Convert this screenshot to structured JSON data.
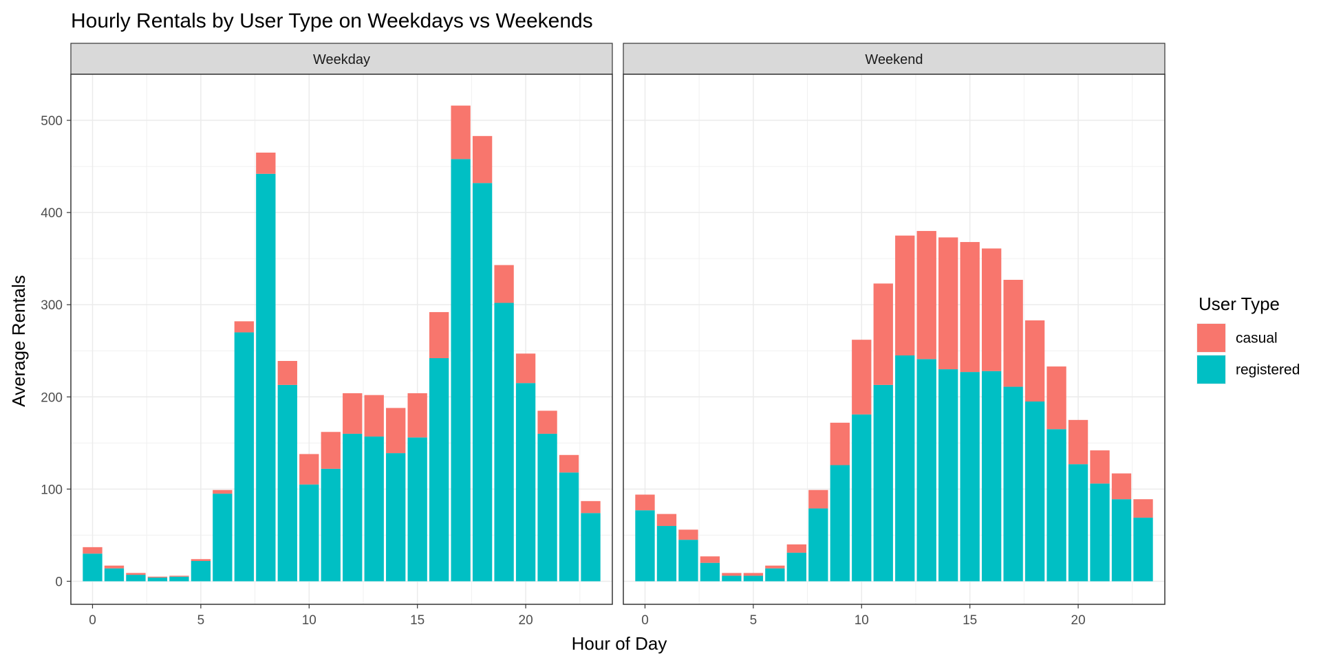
{
  "chart_data": {
    "type": "bar",
    "stacked": true,
    "title": "Hourly Rentals by User Type on Weekdays vs Weekends",
    "xlabel": "Hour of Day",
    "ylabel": "Average Rentals",
    "xlim": [
      -1,
      24
    ],
    "ylim": [
      -25,
      550
    ],
    "x_ticks": [
      0,
      5,
      10,
      15,
      20
    ],
    "y_ticks": [
      0,
      100,
      200,
      300,
      400,
      500
    ],
    "grid": true,
    "legend": {
      "title": "User Type",
      "position": "right"
    },
    "colors": {
      "casual": "#F8766D",
      "registered": "#00BFC4"
    },
    "series_names": [
      "casual",
      "registered"
    ],
    "hours": [
      0,
      1,
      2,
      3,
      4,
      5,
      6,
      7,
      8,
      9,
      10,
      11,
      12,
      13,
      14,
      15,
      16,
      17,
      18,
      19,
      20,
      21,
      22,
      23
    ],
    "panels": [
      {
        "label": "Weekday",
        "registered": [
          30,
          14,
          7,
          4,
          5,
          22,
          95,
          270,
          442,
          213,
          105,
          122,
          160,
          157,
          139,
          156,
          242,
          458,
          432,
          302,
          215,
          160,
          118,
          74
        ],
        "total": [
          37,
          17,
          9,
          5,
          6,
          24,
          99,
          282,
          465,
          239,
          138,
          162,
          204,
          202,
          188,
          204,
          292,
          516,
          483,
          343,
          247,
          185,
          137,
          87
        ]
      },
      {
        "label": "Weekend",
        "registered": [
          77,
          60,
          45,
          20,
          6,
          6,
          14,
          31,
          79,
          126,
          181,
          213,
          245,
          241,
          230,
          227,
          228,
          211,
          195,
          165,
          127,
          106,
          89,
          69
        ],
        "total": [
          94,
          73,
          56,
          27,
          9,
          9,
          17,
          40,
          99,
          172,
          262,
          323,
          375,
          380,
          373,
          368,
          361,
          327,
          283,
          233,
          175,
          142,
          117,
          89
        ]
      }
    ]
  }
}
